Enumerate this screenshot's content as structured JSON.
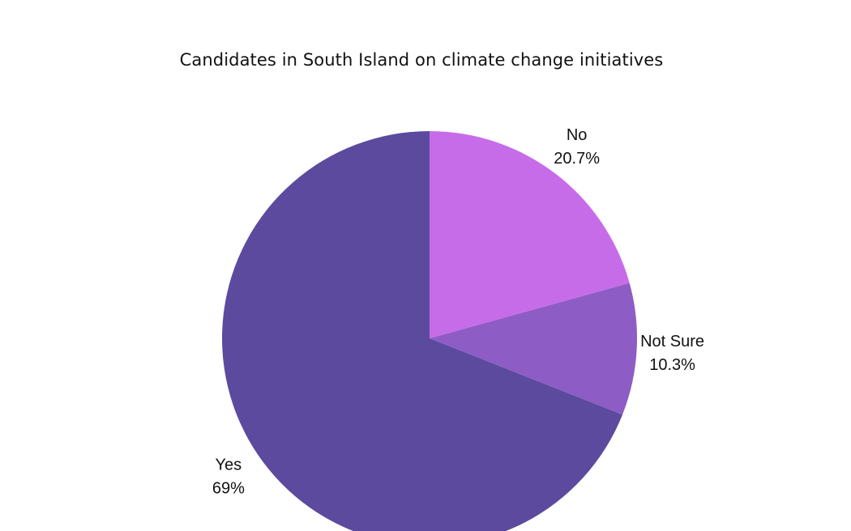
{
  "chart_data": {
    "type": "pie",
    "title": "Candidates in South Island on climate change initiatives",
    "slices": [
      {
        "label": "No",
        "value": 20.7,
        "display": "20.7%",
        "color": "#c76ce8"
      },
      {
        "label": "Not Sure",
        "value": 10.3,
        "display": "10.3%",
        "color": "#8e5cc5"
      },
      {
        "label": "Yes",
        "value": 69,
        "display": "69%",
        "color": "#5c4a9f"
      }
    ],
    "start_angle": "12 o'clock",
    "direction": "clockwise",
    "legend": "none"
  }
}
